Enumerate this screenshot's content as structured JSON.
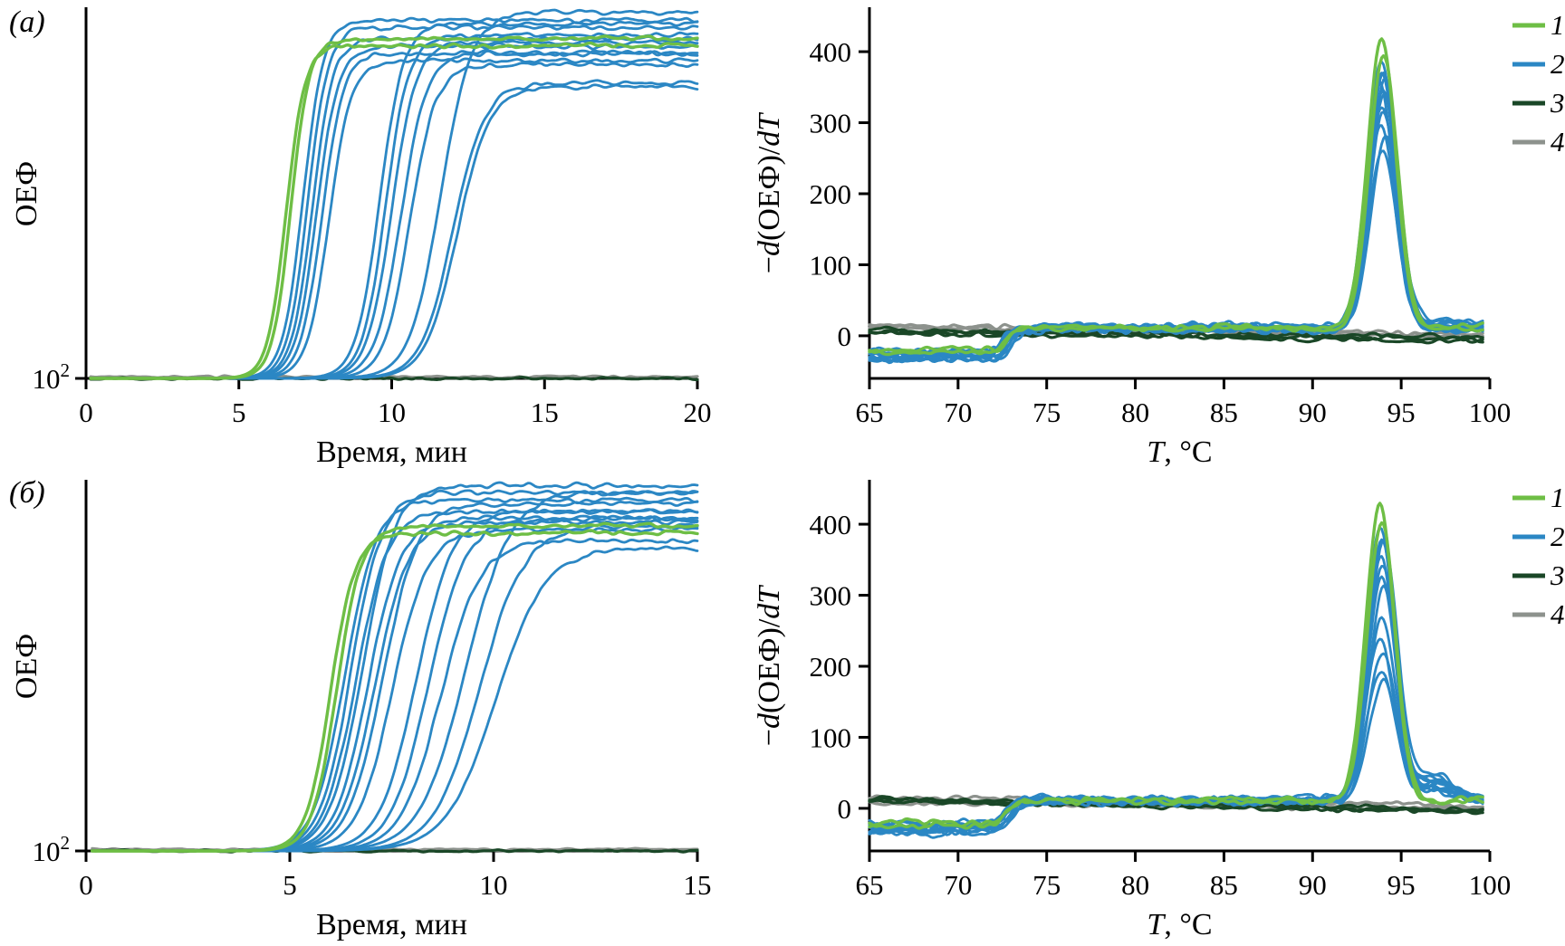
{
  "figure": {
    "background": "#ffffff",
    "panel_labels": [
      "(а)",
      "(б)"
    ]
  },
  "colors": {
    "green": "#6ebe45",
    "blue": "#2b87c4",
    "dark_green": "#1a4727",
    "gray": "#8d928d",
    "axis": "#000000"
  },
  "chart_data": [
    {
      "id": "amp-a",
      "kind": "amplification",
      "type": "line",
      "panel": "(а)",
      "xlabel_segments": [
        {
          "t": "Время, мин"
        }
      ],
      "ylabel_segments": [
        {
          "t": "ОЕФ"
        }
      ],
      "xlim": [
        0,
        20
      ],
      "xticks": [
        0,
        5,
        10,
        15,
        20
      ],
      "yscale": "log",
      "ytick_segments": [
        [
          {
            "t": "10"
          },
          {
            "t": "2",
            "sup": true
          }
        ]
      ],
      "baseline_value": 100,
      "groups": [
        {
          "name": "1",
          "color_key": "green",
          "width": 3.4,
          "curves": [
            {
              "t0": 6.55,
              "slope": 0.3,
              "plateau": 0.9
            },
            {
              "t0": 6.7,
              "slope": 0.3,
              "plateau": 0.92
            }
          ]
        },
        {
          "name": "2",
          "color_key": "blue",
          "width": 2.8,
          "curves": [
            {
              "t0": 7.1,
              "slope": 0.33,
              "plateau": 0.97
            },
            {
              "t0": 7.25,
              "slope": 0.33,
              "plateau": 0.95
            },
            {
              "t0": 7.4,
              "slope": 0.34,
              "plateau": 0.92
            },
            {
              "t0": 7.55,
              "slope": 0.35,
              "plateau": 0.9
            },
            {
              "t0": 7.72,
              "slope": 0.35,
              "plateau": 0.88
            },
            {
              "t0": 7.95,
              "slope": 0.36,
              "plateau": 0.86
            },
            {
              "t0": 9.6,
              "slope": 0.38,
              "plateau": 0.96
            },
            {
              "t0": 9.8,
              "slope": 0.38,
              "plateau": 0.93
            },
            {
              "t0": 10.0,
              "slope": 0.4,
              "plateau": 0.91
            },
            {
              "t0": 10.3,
              "slope": 0.42,
              "plateau": 0.88
            },
            {
              "t0": 10.6,
              "slope": 0.42,
              "plateau": 0.85
            },
            {
              "t0": 11.6,
              "slope": 0.5,
              "plateau": 0.99
            },
            {
              "t0": 12.0,
              "slope": 0.52,
              "plateau": 0.8
            },
            {
              "t0": 12.15,
              "slope": 0.52,
              "plateau": 0.79
            }
          ]
        },
        {
          "name": "3",
          "color_key": "dark_green",
          "width": 3.2,
          "curves": [
            {
              "flat": true,
              "level": 0.0,
              "seed": 301
            }
          ]
        },
        {
          "name": "4",
          "color_key": "gray",
          "width": 3.2,
          "curves": [
            {
              "flat": true,
              "level": 0.004,
              "seed": 401
            }
          ]
        }
      ]
    },
    {
      "id": "melt-a",
      "kind": "melt",
      "type": "line",
      "panel": "(а)",
      "xlabel_segments": [
        {
          "t": "T",
          "i": true
        },
        {
          "t": ", °C"
        }
      ],
      "ylabel_segments": [
        {
          "t": "−"
        },
        {
          "t": "d",
          "i": true
        },
        {
          "t": "(ОЕФ)/"
        },
        {
          "t": "d",
          "i": true
        },
        {
          "t": "T",
          "i": true
        }
      ],
      "xlim": [
        65,
        100
      ],
      "xticks": [
        65,
        70,
        75,
        80,
        85,
        90,
        95,
        100
      ],
      "ylim": [
        -60,
        460
      ],
      "yticks": [
        0,
        100,
        200,
        300,
        400
      ],
      "legend": [
        {
          "label": "1",
          "color_key": "green"
        },
        {
          "label": "2",
          "color_key": "blue"
        },
        {
          "label": "3",
          "color_key": "dark_green"
        },
        {
          "label": "4",
          "color_key": "gray"
        }
      ],
      "groups": [
        {
          "name": "1",
          "color_key": "green",
          "width": 3.4,
          "noise": 6,
          "curves": [
            {
              "peak": 405,
              "peak_t": 93.9,
              "base_low": -24,
              "base_high": 12,
              "trans_t": 72.7,
              "seed": 101
            },
            {
              "peak": 385,
              "peak_t": 94.0,
              "base_low": -19,
              "base_high": 10,
              "trans_t": 72.9,
              "seed": 102
            }
          ]
        },
        {
          "name": "2",
          "color_key": "blue",
          "width": 2.8,
          "noise": 7,
          "curves": [
            {
              "peak": 376,
              "peak_t": 93.85,
              "base_low": -32,
              "base_high": 12,
              "trans_t": 72.4,
              "seed": 201
            },
            {
              "peak": 366,
              "peak_t": 94.0,
              "base_low": -28,
              "base_high": 9,
              "trans_t": 72.6,
              "seed": 202
            },
            {
              "peak": 358,
              "peak_t": 93.9,
              "base_low": -25,
              "base_high": 13,
              "trans_t": 73.1,
              "seed": 203
            },
            {
              "peak": 350,
              "peak_t": 94.1,
              "base_low": -35,
              "base_high": 8,
              "trans_t": 72.5,
              "seed": 204,
              "bump": 12,
              "bump_t": 97.3
            },
            {
              "peak": 342,
              "peak_t": 93.8,
              "base_low": -22,
              "base_high": 11,
              "trans_t": 72.8,
              "seed": 205
            },
            {
              "peak": 334,
              "peak_t": 93.95,
              "base_low": -30,
              "base_high": 10,
              "trans_t": 73.2,
              "seed": 206
            },
            {
              "peak": 325,
              "peak_t": 94.05,
              "base_low": -26,
              "base_high": 14,
              "trans_t": 72.6,
              "seed": 207,
              "bump": 10,
              "bump_t": 97.0
            },
            {
              "peak": 315,
              "peak_t": 93.9,
              "base_low": -33,
              "base_high": 9,
              "trans_t": 72.9,
              "seed": 208
            },
            {
              "peak": 302,
              "peak_t": 94.0,
              "base_low": -20,
              "base_high": 12,
              "trans_t": 73.0,
              "seed": 209
            },
            {
              "peak": 288,
              "peak_t": 93.85,
              "base_low": -29,
              "base_high": 10,
              "trans_t": 72.5,
              "seed": 210,
              "bump": 14,
              "bump_t": 97.5
            },
            {
              "peak": 268,
              "peak_t": 94.1,
              "base_low": -24,
              "base_high": 11,
              "trans_t": 72.7,
              "seed": 211
            },
            {
              "peak": 252,
              "peak_t": 93.95,
              "base_low": -31,
              "base_high": 9,
              "trans_t": 73.1,
              "seed": 212,
              "bump": 9,
              "bump_t": 97.2
            }
          ]
        },
        {
          "name": "3",
          "color_key": "dark_green",
          "width": 3.2,
          "noise": 4,
          "curves": [
            {
              "flat": true,
              "start": 7,
              "end": -5,
              "seed": 301
            },
            {
              "flat": true,
              "start": 4,
              "end": -8,
              "seed": 302
            },
            {
              "flat": true,
              "start": 9,
              "end": -2,
              "seed": 303
            }
          ]
        },
        {
          "name": "4",
          "color_key": "gray",
          "width": 3.2,
          "noise": 4,
          "curves": [
            {
              "flat": true,
              "start": 15,
              "end": 2,
              "seed": 401
            },
            {
              "flat": true,
              "start": 11,
              "end": -2,
              "seed": 402
            },
            {
              "flat": true,
              "start": 13,
              "end": 0,
              "seed": 403
            }
          ]
        }
      ]
    },
    {
      "id": "amp-b",
      "kind": "amplification",
      "type": "line",
      "panel": "(б)",
      "xlabel_segments": [
        {
          "t": "Время, мин"
        }
      ],
      "ylabel_segments": [
        {
          "t": "ОЕФ"
        }
      ],
      "xlim": [
        0,
        15
      ],
      "xticks": [
        0,
        5,
        10,
        15
      ],
      "yscale": "log",
      "ytick_segments": [
        [
          {
            "t": "10"
          },
          {
            "t": "2",
            "sup": true
          }
        ]
      ],
      "baseline_value": 100,
      "groups": [
        {
          "name": "1",
          "color_key": "green",
          "width": 3.4,
          "curves": [
            {
              "t0": 6.0,
              "slope": 0.3,
              "plateau": 0.86
            },
            {
              "t0": 6.15,
              "slope": 0.3,
              "plateau": 0.88
            }
          ]
        },
        {
          "name": "2",
          "color_key": "blue",
          "width": 2.8,
          "curves": [
            {
              "t0": 6.35,
              "slope": 0.38,
              "plateau": 0.95
            },
            {
              "t0": 6.5,
              "slope": 0.38,
              "plateau": 0.97
            },
            {
              "t0": 6.62,
              "slope": 0.39,
              "plateau": 0.92
            },
            {
              "t0": 6.78,
              "slope": 0.4,
              "plateau": 0.99
            },
            {
              "t0": 6.92,
              "slope": 0.4,
              "plateau": 0.9
            },
            {
              "t0": 7.08,
              "slope": 0.41,
              "plateau": 0.89
            },
            {
              "t0": 7.28,
              "slope": 0.42,
              "plateau": 0.94
            },
            {
              "t0": 7.52,
              "slope": 0.43,
              "plateau": 0.87
            },
            {
              "t0": 8.1,
              "slope": 0.45,
              "plateau": 0.92
            },
            {
              "t0": 8.4,
              "slope": 0.46,
              "plateau": 0.9
            },
            {
              "t0": 8.7,
              "slope": 0.48,
              "plateau": 0.84
            },
            {
              "t0": 9.3,
              "slope": 0.55,
              "plateau": 0.97
            },
            {
              "t0": 9.65,
              "slope": 0.55,
              "plateau": 0.88
            },
            {
              "t0": 10.05,
              "slope": 0.6,
              "plateau": 0.82
            }
          ]
        },
        {
          "name": "3",
          "color_key": "dark_green",
          "width": 3.2,
          "curves": [
            {
              "flat": true,
              "level": 0.0,
              "seed": 311
            }
          ]
        },
        {
          "name": "4",
          "color_key": "gray",
          "width": 3.2,
          "curves": [
            {
              "flat": true,
              "level": 0.004,
              "seed": 411
            }
          ]
        }
      ]
    },
    {
      "id": "melt-b",
      "kind": "melt",
      "type": "line",
      "panel": "(б)",
      "xlabel_segments": [
        {
          "t": "T",
          "i": true
        },
        {
          "t": ", °C"
        }
      ],
      "ylabel_segments": [
        {
          "t": "−"
        },
        {
          "t": "d",
          "i": true
        },
        {
          "t": "(ОЕФ)/"
        },
        {
          "t": "d",
          "i": true
        },
        {
          "t": "T",
          "i": true
        }
      ],
      "xlim": [
        65,
        100
      ],
      "xticks": [
        65,
        70,
        75,
        80,
        85,
        90,
        95,
        100
      ],
      "ylim": [
        -60,
        460
      ],
      "yticks": [
        0,
        100,
        200,
        300,
        400
      ],
      "legend": [
        {
          "label": "1",
          "color_key": "green"
        },
        {
          "label": "2",
          "color_key": "blue"
        },
        {
          "label": "3",
          "color_key": "dark_green"
        },
        {
          "label": "4",
          "color_key": "gray"
        }
      ],
      "groups": [
        {
          "name": "1",
          "color_key": "green",
          "width": 3.4,
          "noise": 6,
          "curves": [
            {
              "peak": 415,
              "peak_t": 93.8,
              "base_low": -25,
              "base_high": 12,
              "trans_t": 72.6,
              "seed": 111
            },
            {
              "peak": 392,
              "peak_t": 93.9,
              "base_low": -20,
              "base_high": 10,
              "trans_t": 72.8,
              "seed": 112
            }
          ]
        },
        {
          "name": "2",
          "color_key": "blue",
          "width": 2.8,
          "noise": 7,
          "curves": [
            {
              "peak": 382,
              "peak_t": 93.8,
              "base_low": -33,
              "base_high": 12,
              "trans_t": 72.4,
              "seed": 221,
              "bump": 30
            },
            {
              "peak": 370,
              "peak_t": 93.9,
              "base_low": -27,
              "base_high": 10,
              "trans_t": 72.7,
              "seed": 222,
              "bump": 26
            },
            {
              "peak": 358,
              "peak_t": 94.0,
              "base_low": -24,
              "base_high": 13,
              "trans_t": 73.1,
              "seed": 223,
              "bump": 34
            },
            {
              "peak": 345,
              "peak_t": 93.85,
              "base_low": -35,
              "base_high": 9,
              "trans_t": 72.5,
              "seed": 224,
              "bump": 22
            },
            {
              "peak": 330,
              "peak_t": 93.95,
              "base_low": -22,
              "base_high": 11,
              "trans_t": 72.9,
              "seed": 225,
              "bump": 28
            },
            {
              "peak": 312,
              "peak_t": 93.9,
              "base_low": -30,
              "base_high": 10,
              "trans_t": 73.2,
              "seed": 226,
              "bump": 18
            },
            {
              "peak": 295,
              "peak_t": 94.0,
              "base_low": -26,
              "base_high": 14,
              "trans_t": 72.6,
              "seed": 227,
              "bump": 24
            },
            {
              "peak": 258,
              "peak_t": 93.9,
              "base_low": -32,
              "base_high": 9,
              "trans_t": 72.8,
              "seed": 228,
              "bump": 36
            },
            {
              "peak": 228,
              "peak_t": 93.8,
              "base_low": -21,
              "base_high": 12,
              "trans_t": 73.0,
              "seed": 229,
              "bump": 12
            },
            {
              "peak": 205,
              "peak_t": 93.95,
              "base_low": -28,
              "base_high": 10,
              "trans_t": 72.5,
              "seed": 230,
              "bump": 30
            },
            {
              "peak": 186,
              "peak_t": 93.85,
              "base_low": -24,
              "base_high": 11,
              "trans_t": 72.7,
              "seed": 231,
              "bump": 14
            },
            {
              "peak": 170,
              "peak_t": 94.0,
              "base_low": -31,
              "base_high": 9,
              "trans_t": 73.1,
              "seed": 232,
              "bump": 20
            }
          ]
        },
        {
          "name": "3",
          "color_key": "dark_green",
          "width": 3.2,
          "noise": 4,
          "curves": [
            {
              "flat": true,
              "start": 14,
              "end": -2,
              "seed": 321
            },
            {
              "flat": true,
              "start": 10,
              "end": -6,
              "seed": 322
            },
            {
              "flat": true,
              "start": 12,
              "end": -4,
              "seed": 323
            }
          ]
        },
        {
          "name": "4",
          "color_key": "gray",
          "width": 3.2,
          "noise": 4,
          "curves": [
            {
              "flat": true,
              "start": 16,
              "end": 4,
              "seed": 421
            },
            {
              "flat": true,
              "start": 12,
              "end": 0,
              "seed": 422
            },
            {
              "flat": true,
              "start": 8,
              "end": -2,
              "seed": 423
            }
          ]
        }
      ]
    }
  ]
}
